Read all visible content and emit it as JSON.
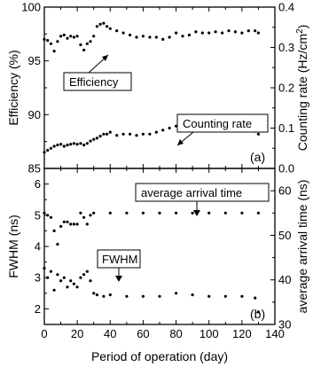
{
  "chart_data": [
    {
      "type": "scatter",
      "panel_label": "(a)",
      "xlabel": "Period of operation (day)",
      "xlim": [
        0,
        140
      ],
      "xticks": [
        "0",
        "20",
        "40",
        "60",
        "80",
        "100",
        "120",
        "140"
      ],
      "ylabel_left": "Efficiency (%)",
      "ylim_left": [
        85,
        100
      ],
      "yticks_left": [
        "85",
        "90",
        "95",
        "100"
      ],
      "ylabel_right": "Counting rate (Hz/cm²)",
      "ylabel_right_base": "Counting rate (Hz/cm",
      "ylabel_right_sup": "2",
      "ylabel_right_close": ")",
      "ylim_right": [
        0.0,
        0.4
      ],
      "yticks_right": [
        "0.0",
        "0.1",
        "0.2",
        "0.3",
        "0.4"
      ],
      "series": [
        {
          "name": "Efficiency",
          "axis": "left",
          "x": [
            0,
            2,
            4,
            6,
            8,
            10,
            12,
            14,
            16,
            18,
            20,
            22,
            24,
            26,
            28,
            30,
            32,
            34,
            36,
            38,
            40,
            44,
            48,
            52,
            56,
            60,
            64,
            68,
            72,
            76,
            80,
            84,
            88,
            92,
            96,
            100,
            104,
            108,
            112,
            116,
            120,
            124,
            128,
            130
          ],
          "y": [
            97.0,
            96.9,
            96.6,
            95.9,
            96.8,
            97.3,
            97.4,
            97.1,
            97.3,
            97.2,
            97.3,
            96.5,
            96.0,
            96.6,
            96.8,
            97.3,
            98.2,
            98.4,
            98.5,
            98.2,
            98.0,
            97.8,
            97.6,
            97.4,
            97.2,
            97.3,
            97.2,
            97.2,
            97.0,
            97.2,
            97.6,
            97.3,
            97.4,
            97.7,
            97.6,
            97.6,
            97.7,
            97.6,
            97.8,
            97.7,
            97.6,
            97.8,
            97.8,
            97.6
          ]
        },
        {
          "name": "Counting rate",
          "axis": "right",
          "x": [
            0,
            2,
            4,
            6,
            8,
            10,
            12,
            14,
            16,
            18,
            20,
            22,
            24,
            26,
            28,
            30,
            32,
            34,
            36,
            38,
            40,
            44,
            48,
            52,
            56,
            60,
            64,
            68,
            72,
            76,
            80,
            84,
            88,
            92,
            96,
            100,
            104,
            108,
            112,
            116,
            120,
            124,
            128,
            130
          ],
          "y": [
            0.04,
            0.045,
            0.05,
            0.055,
            0.058,
            0.06,
            0.055,
            0.058,
            0.06,
            0.062,
            0.06,
            0.062,
            0.058,
            0.062,
            0.068,
            0.072,
            0.075,
            0.08,
            0.085,
            0.085,
            0.09,
            0.082,
            0.085,
            0.085,
            0.082,
            0.085,
            0.085,
            0.09,
            0.095,
            0.1,
            0.105,
            0.115,
            0.115,
            0.11,
            0.105,
            0.102,
            0.1,
            0.1,
            0.1,
            0.095,
            0.095,
            0.095,
            0.092,
            0.085
          ]
        }
      ]
    },
    {
      "type": "scatter",
      "panel_label": "(b)",
      "xlabel": "Period of operation (day)",
      "xlim": [
        0,
        140
      ],
      "xticks": [
        "0",
        "20",
        "40",
        "60",
        "80",
        "100",
        "120",
        "140"
      ],
      "ylabel_left": "FWHM (ns)",
      "ylim_left": [
        1.5,
        6.5
      ],
      "yticks_left": [
        "2",
        "3",
        "4",
        "5",
        "6"
      ],
      "ylabel_right": "average arrival time (ns)",
      "ylim_right": [
        30,
        65
      ],
      "yticks_right": [
        "30",
        "40",
        "50",
        "60"
      ],
      "series": [
        {
          "name": "average arrival time",
          "axis": "right",
          "x": [
            0,
            2,
            4,
            6,
            8,
            10,
            12,
            14,
            16,
            18,
            20,
            22,
            24,
            26,
            28,
            30,
            40,
            50,
            60,
            70,
            80,
            90,
            100,
            110,
            120,
            130
          ],
          "y": [
            55.0,
            54.5,
            54.0,
            51.0,
            48.0,
            52.0,
            53.0,
            53.0,
            52.5,
            52.5,
            52.5,
            55.0,
            54.0,
            52.5,
            54.5,
            55.0,
            55.0,
            55.0,
            55.0,
            55.0,
            55.0,
            55.0,
            55.0,
            55.0,
            55.0,
            55.0
          ]
        },
        {
          "name": "FWHM",
          "axis": "left",
          "x": [
            0,
            2,
            4,
            6,
            8,
            10,
            12,
            14,
            16,
            18,
            20,
            22,
            24,
            26,
            28,
            30,
            32,
            36,
            40,
            50,
            60,
            70,
            80,
            90,
            100,
            110,
            120,
            128,
            130
          ],
          "y": [
            3.3,
            3.0,
            3.2,
            2.6,
            3.1,
            2.9,
            3.0,
            2.7,
            2.9,
            2.8,
            2.7,
            3.0,
            3.1,
            3.2,
            2.9,
            2.5,
            2.45,
            2.4,
            2.45,
            2.4,
            2.4,
            2.4,
            2.5,
            2.45,
            2.4,
            2.4,
            2.4,
            2.35,
            1.9
          ]
        }
      ]
    }
  ]
}
